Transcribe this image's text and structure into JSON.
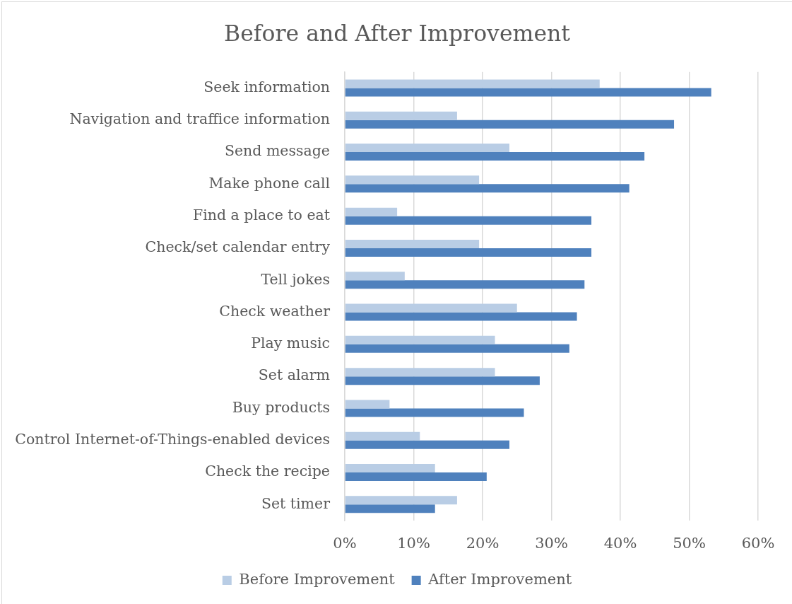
{
  "chart_data": {
    "type": "bar",
    "orientation": "horizontal",
    "title": "Before and After Improvement",
    "categories": [
      "Seek information",
      "Navigation and traffice information",
      "Send message",
      "Make phone call",
      "Find a place to eat",
      "Check/set calendar entry",
      "Tell jokes",
      "Check weather",
      "Play music",
      "Set alarm",
      "Buy products",
      "Control Internet-of-Things-enabled devices",
      "Check the recipe",
      "Set timer"
    ],
    "series": [
      {
        "name": "Before Improvement",
        "color": "#b9cde5",
        "values": [
          37,
          16.3,
          23.9,
          19.5,
          7.6,
          19.5,
          8.7,
          25,
          21.8,
          21.8,
          6.5,
          10.9,
          13.1,
          16.3
        ]
      },
      {
        "name": "After Improvement",
        "color": "#4f81bd",
        "values": [
          53.2,
          47.8,
          43.5,
          41.3,
          35.8,
          35.8,
          34.8,
          33.7,
          32.6,
          28.3,
          26,
          23.9,
          20.6,
          13.1
        ]
      }
    ],
    "xlim": [
      0,
      60
    ],
    "xticks": [
      {
        "value": 0,
        "label": "0%"
      },
      {
        "value": 10,
        "label": "10%"
      },
      {
        "value": 20,
        "label": "20%"
      },
      {
        "value": 30,
        "label": "30%"
      },
      {
        "value": 40,
        "label": "40%"
      },
      {
        "value": 50,
        "label": "50%"
      },
      {
        "value": 60,
        "label": "60%"
      }
    ],
    "grid": "x",
    "legend": "bottom"
  }
}
